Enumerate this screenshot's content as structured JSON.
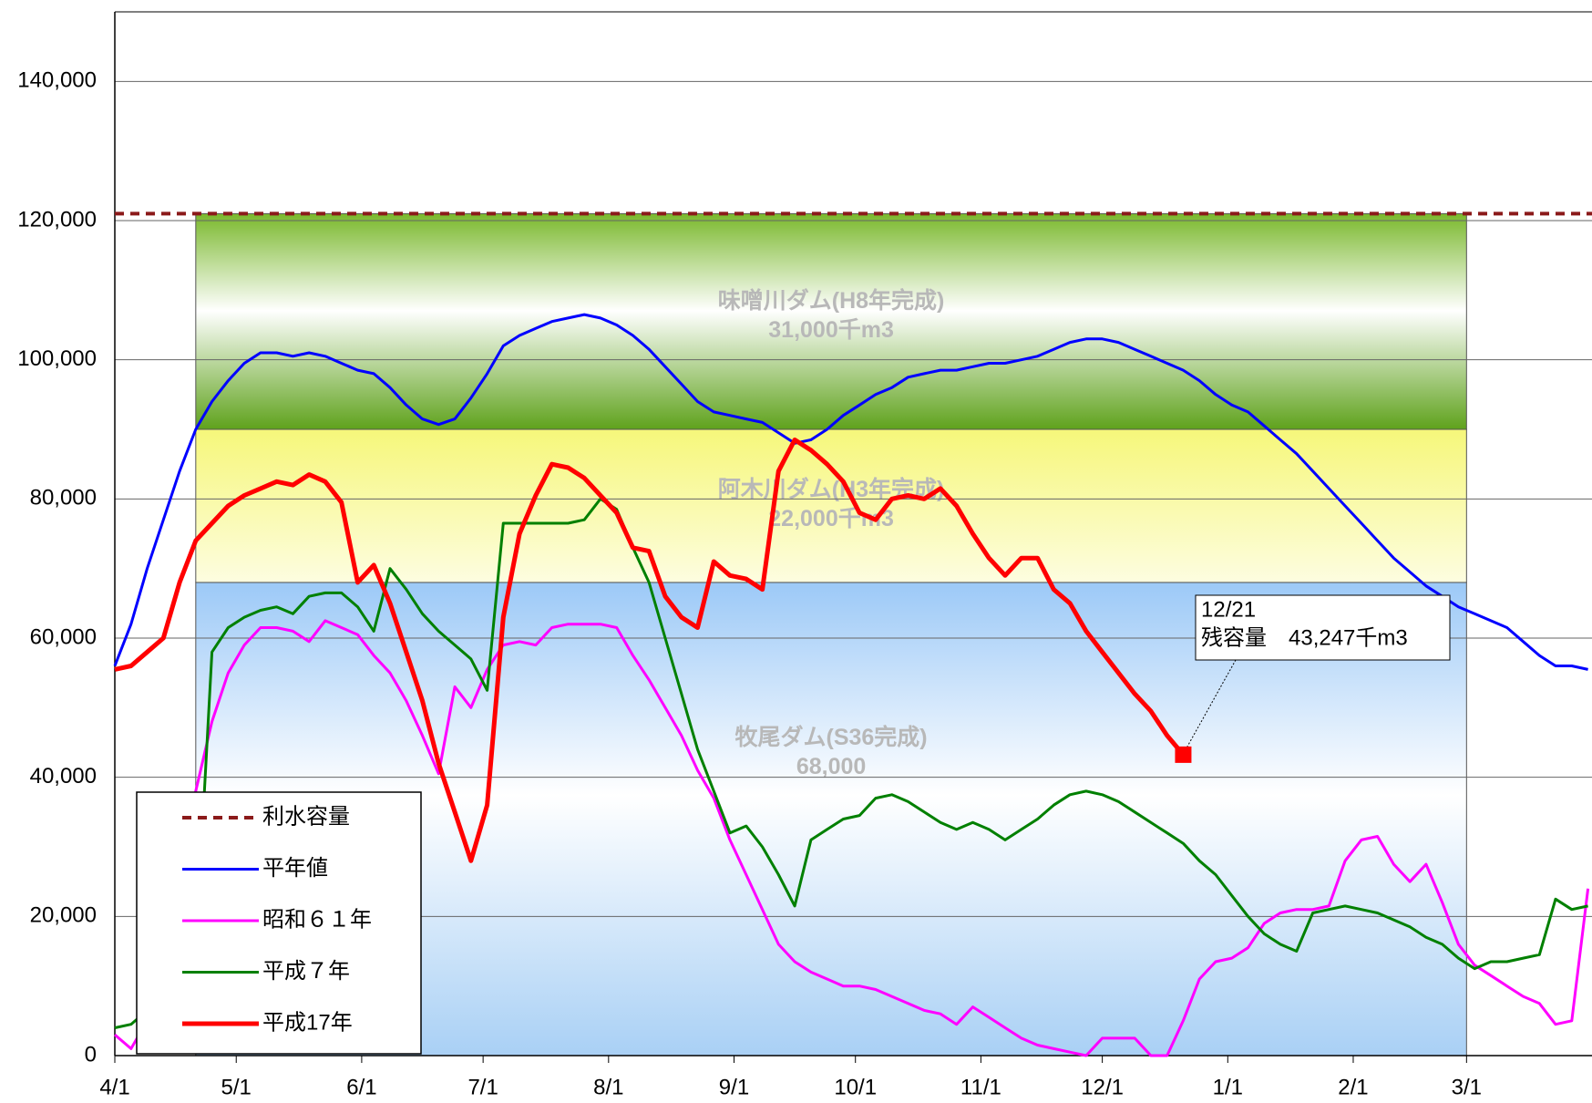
{
  "chart_data": {
    "type": "line",
    "xlim": [
      0,
      365
    ],
    "xticks": [
      {
        "value": 0,
        "label": "4/1"
      },
      {
        "value": 30,
        "label": "5/1"
      },
      {
        "value": 61,
        "label": "6/1"
      },
      {
        "value": 91,
        "label": "7/1"
      },
      {
        "value": 122,
        "label": "8/1"
      },
      {
        "value": 153,
        "label": "9/1"
      },
      {
        "value": 183,
        "label": "10/1"
      },
      {
        "value": 214,
        "label": "11/1"
      },
      {
        "value": 244,
        "label": "12/1"
      },
      {
        "value": 275,
        "label": "1/1"
      },
      {
        "value": 306,
        "label": "2/1"
      },
      {
        "value": 334,
        "label": "3/1"
      }
    ],
    "ylim": [
      0,
      150000
    ],
    "yticks": [
      0,
      {
        "value": 20000,
        "label": "20,000"
      },
      {
        "value": 40000,
        "label": "40,000"
      },
      {
        "value": 60000,
        "label": "60,000"
      },
      {
        "value": 80000,
        "label": "80,000"
      },
      {
        "value": 100000,
        "label": "100,000"
      },
      {
        "value": 120000,
        "label": "120,000"
      },
      {
        "value": 140000,
        "label": "140,000"
      }
    ],
    "grid": true,
    "bands": [
      {
        "label": "牧尾ダム(S36完成)",
        "sublabel": "68,000",
        "ylim": [
          0,
          68000
        ],
        "xrange": [
          20,
          334
        ]
      },
      {
        "label": "阿木川ダム(H3年完成)",
        "sublabel": "22,000千m3",
        "ylim": [
          68000,
          90000
        ],
        "xrange": [
          20,
          334
        ]
      },
      {
        "label": "味噌川ダム(H8年完成)",
        "sublabel": "31,000千m3",
        "ylim": [
          90000,
          121000
        ],
        "xrange": [
          20,
          334
        ]
      }
    ],
    "reference_line": {
      "name": "利水容量",
      "value": 121000,
      "color": "#8b1a1a"
    },
    "x": [
      0,
      4,
      8,
      12,
      16,
      20,
      24,
      28,
      32,
      36,
      40,
      44,
      48,
      52,
      56,
      60,
      64,
      68,
      72,
      76,
      80,
      84,
      88,
      92,
      96,
      100,
      104,
      108,
      112,
      116,
      120,
      124,
      128,
      132,
      136,
      140,
      144,
      148,
      152,
      156,
      160,
      164,
      168,
      172,
      176,
      180,
      184,
      188,
      192,
      196,
      200,
      204,
      208,
      212,
      216,
      220,
      224,
      228,
      232,
      236,
      240,
      244,
      248,
      252,
      256,
      260,
      264,
      268,
      272,
      276,
      280,
      284,
      288,
      292,
      296,
      300,
      304,
      308,
      312,
      316,
      320,
      324,
      328,
      332,
      336,
      340,
      344,
      348,
      352,
      356,
      360,
      364
    ],
    "series": [
      {
        "name": "平年値",
        "color": "#0000ff",
        "width": 3,
        "values": [
          56000,
          62000,
          70000,
          77000,
          84000,
          90000,
          94000,
          97000,
          99500,
          101000,
          101000,
          100500,
          101000,
          100500,
          99500,
          98500,
          98000,
          96000,
          93500,
          91500,
          90700,
          91500,
          94500,
          98000,
          102000,
          103500,
          104500,
          105500,
          106000,
          106500,
          106000,
          105000,
          103500,
          101500,
          99000,
          96500,
          94000,
          92500,
          92000,
          91500,
          91000,
          89500,
          88000,
          88500,
          90000,
          92000,
          93500,
          95000,
          96000,
          97500,
          98000,
          98500,
          98500,
          99000,
          99500,
          99500,
          100000,
          100500,
          101500,
          102500,
          103000,
          103000,
          102500,
          101500,
          100500,
          99500,
          98500,
          97000,
          95000,
          93500,
          92500,
          90500,
          88500,
          86500,
          84000,
          81500,
          79000,
          76500,
          74000,
          71500,
          69500,
          67500,
          66000,
          64500,
          63500,
          62500,
          61500,
          59500,
          57500,
          56000,
          56000,
          55500
        ]
      },
      {
        "name": "昭和６１年",
        "color": "#ff00ff",
        "width": 3,
        "values": [
          3000,
          1000,
          5000,
          13000,
          30000,
          38000,
          48000,
          55000,
          59000,
          61500,
          61500,
          61000,
          59500,
          62500,
          61500,
          60500,
          57500,
          55000,
          51000,
          46000,
          40500,
          53000,
          50000,
          55500,
          59000,
          59500,
          59000,
          61500,
          62000,
          62000,
          62000,
          61500,
          57500,
          54000,
          50000,
          46000,
          41000,
          37000,
          31000,
          26000,
          21000,
          16000,
          13500,
          12000,
          11000,
          10000,
          10000,
          9500,
          8500,
          7500,
          6500,
          6000,
          4500,
          7000,
          5500,
          4000,
          2500,
          1500,
          1000,
          500,
          0,
          2500,
          2500,
          2500,
          0,
          0,
          5000,
          11000,
          13500,
          14000,
          15500,
          19000,
          20500,
          21000,
          21000,
          21500,
          28000,
          31000,
          31500,
          27500,
          25000,
          27500,
          22000,
          16000,
          13000,
          11500,
          10000,
          8500,
          7500,
          4500,
          5000,
          24000
        ]
      },
      {
        "name": "平成７年",
        "color": "#008000",
        "width": 3,
        "values": [
          4000,
          4500,
          6500,
          8000,
          10000,
          15000,
          58000,
          61500,
          63000,
          64000,
          64500,
          63500,
          66000,
          66500,
          66500,
          64500,
          61000,
          70000,
          67000,
          63500,
          61000,
          59000,
          57000,
          52500,
          76500,
          76500,
          76500,
          76500,
          76500,
          77000,
          80000,
          78500,
          73000,
          68000,
          60000,
          52000,
          44000,
          38000,
          32000,
          33000,
          30000,
          26000,
          21500,
          31000,
          32500,
          34000,
          34500,
          37000,
          37500,
          36500,
          35000,
          33500,
          32500,
          33500,
          32500,
          31000,
          32500,
          34000,
          36000,
          37500,
          38000,
          37500,
          36500,
          35000,
          33500,
          32000,
          30500,
          28000,
          26000,
          23000,
          20000,
          17500,
          16000,
          15000,
          20500,
          21000,
          21500,
          21000,
          20500,
          19500,
          18500,
          17000,
          16000,
          14000,
          12500,
          13500,
          13500,
          14000,
          14500,
          22500,
          21000,
          21500
        ]
      },
      {
        "name": "平成17年",
        "color": "#ff0000",
        "width": 5,
        "values": [
          55500,
          56000,
          58000,
          60000,
          68000,
          74000,
          76500,
          79000,
          80500,
          81500,
          82500,
          82000,
          83500,
          82500,
          79500,
          68000,
          70500,
          65000,
          58000,
          51000,
          42000,
          35000,
          28000,
          36000,
          63000,
          75000,
          80500,
          85000,
          84500,
          83000,
          80500,
          78000,
          73000,
          72500,
          66000,
          63000,
          61500,
          71000,
          69000,
          68500,
          67000,
          84000,
          88500,
          87000,
          85000,
          82500,
          78000,
          77000,
          80000,
          80500,
          80000,
          81500,
          79000,
          75000,
          71500,
          69000,
          71500,
          71500,
          67000,
          65000,
          61000,
          58000,
          55000,
          52000,
          49500,
          46000,
          43247,
          null,
          null,
          null,
          null,
          null,
          null,
          null,
          null,
          null,
          null,
          null,
          null,
          null,
          null,
          null,
          null,
          null,
          null,
          null,
          null,
          null,
          null,
          null,
          null,
          null
        ]
      }
    ],
    "annotation": {
      "lines": [
        "12/21",
        "残容量　43,247千m3"
      ],
      "x": 264,
      "value": 43247,
      "color": "#ff0000"
    }
  }
}
